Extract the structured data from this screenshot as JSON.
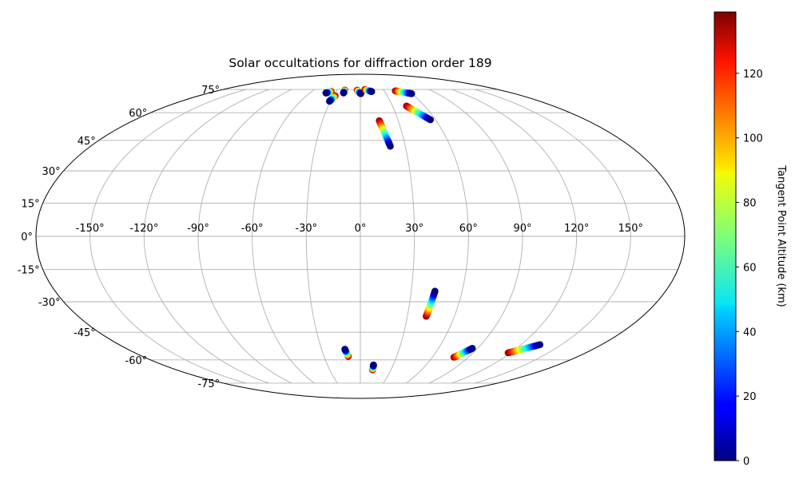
{
  "chart_data": {
    "type": "scatter",
    "projection": "mollweide",
    "title": "Solar occultations for diffraction order 189",
    "longitude_ticks": [
      -150,
      -120,
      -90,
      -60,
      -30,
      0,
      30,
      60,
      90,
      120,
      150
    ],
    "longitude_tick_labels": [
      "-150°",
      "-120°",
      "-90°",
      "-60°",
      "-30°",
      "0°",
      "30°",
      "60°",
      "90°",
      "120°",
      "150°"
    ],
    "latitude_ticks": [
      75,
      60,
      45,
      30,
      15,
      0,
      -15,
      -30,
      -45,
      -60,
      -75
    ],
    "latitude_tick_labels": [
      "75°",
      "60°",
      "45°",
      "30°",
      "15°",
      "0°",
      "-15°",
      "-30°",
      "-45°",
      "-60°",
      "-75°"
    ],
    "grid": true,
    "colorbar": {
      "label": "Tangent Point Altitude (km)",
      "colormap": "jet",
      "range": [
        0,
        139
      ],
      "ticks": [
        0,
        20,
        40,
        60,
        80,
        100,
        120
      ],
      "tick_labels": [
        "0",
        "20",
        "40",
        "60",
        "80",
        "100",
        "120"
      ]
    },
    "tracks": [
      {
        "from": [
          -36,
          73.5
        ],
        "to": [
          -41,
          72.5
        ]
      },
      {
        "from": [
          -28,
          70.5
        ],
        "to": [
          -31,
          67
        ]
      },
      {
        "from": [
          -20,
          74.5
        ],
        "to": [
          -20,
          72.5
        ]
      },
      {
        "from": [
          -4,
          74.5
        ],
        "to": [
          0.5,
          72
        ]
      },
      {
        "from": [
          6,
          75
        ],
        "to": [
          14,
          73.5
        ]
      },
      {
        "from": [
          44,
          74
        ],
        "to": [
          60,
          72
        ]
      },
      {
        "from": [
          43,
          64
        ],
        "to": [
          56,
          56
        ]
      },
      {
        "from": [
          15,
          55.5
        ],
        "to": [
          20,
          42
        ]
      },
      {
        "from": [
          42,
          -37
        ],
        "to": [
          44,
          -25
        ]
      },
      {
        "from": [
          -10,
          -58
        ],
        "to": [
          -12,
          -54
        ]
      },
      {
        "from": [
          12,
          -66
        ],
        "to": [
          12,
          -63
        ]
      },
      {
        "from": [
          78,
          -58.5
        ],
        "to": [
          86,
          -53.5
        ]
      },
      {
        "from": [
          118,
          -56
        ],
        "to": [
          134,
          -51.5
        ]
      }
    ]
  }
}
